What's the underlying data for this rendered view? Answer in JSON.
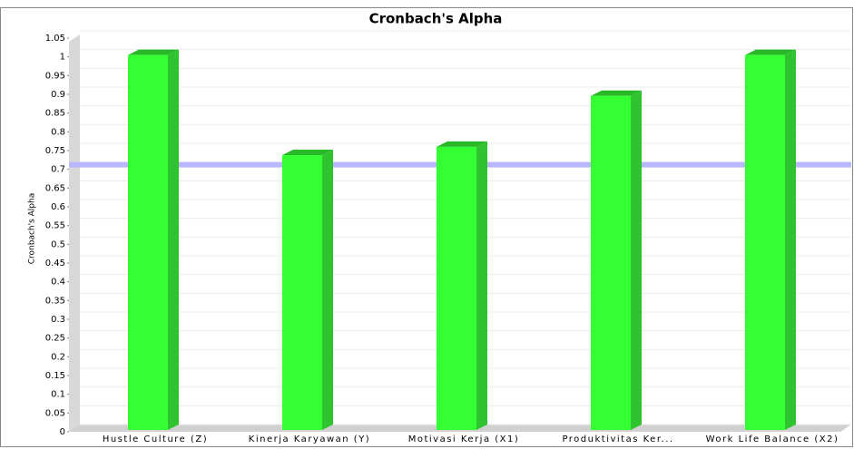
{
  "chart_data": {
    "type": "bar",
    "title": "Cronbach's Alpha",
    "y_label": "Cronbach's Alpha",
    "categories": [
      "Hustle Culture (Z)",
      "Kinerja Karyawan (Y)",
      "Motivasi Kerja (X1)",
      "Produktivitas Ker...",
      "Work Life Balance (X2)"
    ],
    "values": [
      1.0,
      0.733,
      0.755,
      0.891,
      1.0
    ],
    "color": "#33ff33",
    "threshold": 0.7,
    "threshold_color": "#b8b8ff",
    "ylim": [
      0,
      1.05
    ],
    "yticks": [
      0,
      0.05,
      0.1,
      0.15,
      0.2,
      0.25,
      0.3,
      0.35,
      0.4,
      0.45,
      0.5,
      0.55,
      0.6,
      0.65,
      0.7,
      0.75,
      0.8,
      0.85,
      0.9,
      0.95,
      1,
      1.05
    ],
    "grid": true
  }
}
